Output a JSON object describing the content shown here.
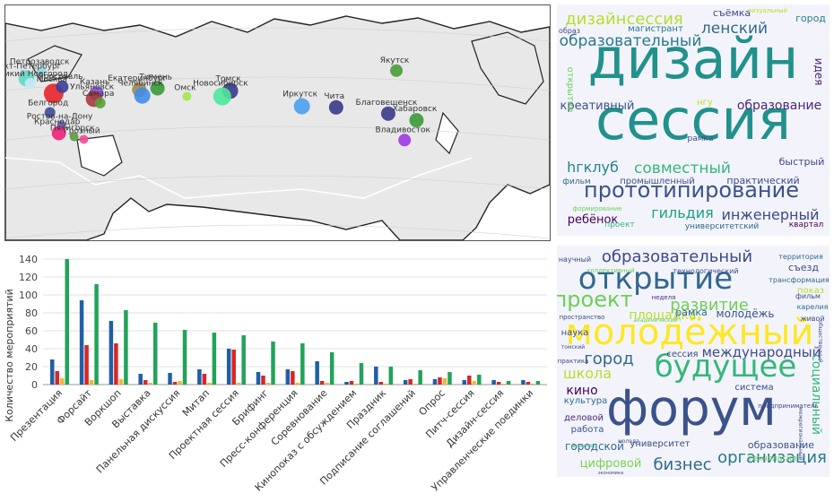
{
  "chart_data": [
    {
      "type": "scatter",
      "subtype": "geo-bubble-map",
      "region": "Russia",
      "points": [
        {
          "city": "Петрозаводск",
          "lon": 34.3,
          "lat": 61.8,
          "color": "#9fd9e8",
          "size": 6
        },
        {
          "city": "Санкт-Петербург",
          "lon": 30.3,
          "lat": 59.9,
          "color": "#62d7c7",
          "size": 9
        },
        {
          "city": "Великий Новгород",
          "lon": 31.3,
          "lat": 58.5,
          "color": "#c6e9f5",
          "size": 6
        },
        {
          "city": "Москва",
          "lon": 37.6,
          "lat": 55.8,
          "color": "#e8232b",
          "size": 11
        },
        {
          "city": "Ярославль",
          "lon": 39.9,
          "lat": 57.6,
          "color": "#3b3f99",
          "size": 7
        },
        {
          "city": "Казань",
          "lon": 49.1,
          "lat": 55.8,
          "color": "#8a4de0",
          "size": 8
        },
        {
          "city": "Ульяновск",
          "lon": 48.4,
          "lat": 54.3,
          "color": "#a83a3a",
          "size": 9
        },
        {
          "city": "Самара",
          "lon": 50.1,
          "lat": 53.2,
          "color": "#5a9e3a",
          "size": 6
        },
        {
          "city": "Белгород",
          "lon": 36.6,
          "lat": 50.6,
          "color": "#3f4a9a",
          "size": 6
        },
        {
          "city": "Ростов-на-Дону",
          "lon": 39.7,
          "lat": 47.2,
          "color": "#5967b8",
          "size": 5
        },
        {
          "city": "Екатеринбург",
          "lon": 60.6,
          "lat": 56.8,
          "color": "#9e8a4a",
          "size": 8
        },
        {
          "city": "Тюмень",
          "lon": 65.5,
          "lat": 57.2,
          "color": "#3a9a3a",
          "size": 8
        },
        {
          "city": "Челябинск",
          "lon": 61.4,
          "lat": 55.2,
          "color": "#3f8ee8",
          "size": 9
        },
        {
          "city": "Омск",
          "lon": 73.4,
          "lat": 55.0,
          "color": "#9ee84a",
          "size": 5
        },
        {
          "city": "Томск",
          "lon": 85.0,
          "lat": 56.5,
          "color": "#3a3a8a",
          "size": 9
        },
        {
          "city": "Новосибирск",
          "lon": 82.9,
          "lat": 55.0,
          "color": "#4ee89a",
          "size": 10
        },
        {
          "city": "Иркутск",
          "lon": 104.3,
          "lat": 52.3,
          "color": "#4a9ef0",
          "size": 9
        },
        {
          "city": "Чита",
          "lon": 113.5,
          "lat": 52.0,
          "color": "#3a3a8a",
          "size": 8
        },
        {
          "city": "Якутск",
          "lon": 129.7,
          "lat": 62.0,
          "color": "#4a9a3a",
          "size": 7
        },
        {
          "city": "Благовещенск",
          "lon": 127.5,
          "lat": 50.3,
          "color": "#3a3a8a",
          "size": 8
        },
        {
          "city": "Хабаровск",
          "lon": 135.1,
          "lat": 48.5,
          "color": "#3a9a3a",
          "size": 8
        },
        {
          "city": "Владивосток",
          "lon": 131.9,
          "lat": 43.1,
          "color": "#9a3ae8",
          "size": 7
        },
        {
          "city": "Пятигорск",
          "lon": 43.1,
          "lat": 44.0,
          "color": "#5a9e3a",
          "size": 5
        },
        {
          "city": "Грозный",
          "lon": 45.7,
          "lat": 43.3,
          "color": "#f04a9a",
          "size": 5
        },
        {
          "city": "Краснодар",
          "lon": 39.0,
          "lat": 45.0,
          "color": "#f0207a",
          "size": 8
        }
      ]
    },
    {
      "type": "bar",
      "categories": [
        "Презентация",
        "Форсайт",
        "Воркшоп",
        "Выставка",
        "Панельная дискуссия",
        "Митап",
        "Проектная сессия",
        "Брифинг",
        "Пресс-конференция",
        "Соревнование",
        "Кинопоказ с обсуждением",
        "Праздник",
        "Подписание соглашений",
        "Опрос",
        "Питч-сессия",
        "Дизайн-сессия",
        "Управленческие поединки"
      ],
      "series": [
        {
          "color": "#1f5fa8",
          "values": [
            28,
            94,
            71,
            12,
            13,
            17,
            40,
            14,
            17,
            26,
            3,
            20,
            5,
            6,
            5,
            5,
            5
          ]
        },
        {
          "color": "#d62728",
          "values": [
            15,
            44,
            46,
            5,
            3,
            12,
            39,
            10,
            15,
            4,
            4,
            3,
            6,
            8,
            10,
            3,
            3
          ]
        },
        {
          "color": "#f0b73a",
          "values": [
            7,
            5,
            6,
            2,
            4,
            2,
            2,
            2,
            2,
            2,
            1,
            1,
            1,
            7,
            4,
            1,
            1
          ]
        },
        {
          "color": "#21a35a",
          "values": [
            140,
            112,
            83,
            69,
            61,
            58,
            55,
            48,
            46,
            36,
            24,
            20,
            16,
            14,
            11,
            4,
            4
          ]
        }
      ],
      "ylabel": "Количество мероприятий",
      "ylim": [
        0,
        145
      ],
      "yticks": [
        0,
        20,
        40,
        60,
        80,
        100,
        120,
        140
      ],
      "grid": true
    },
    {
      "type": "wordcloud",
      "words": [
        {
          "text": "дизайн",
          "color": "#21918c"
        },
        {
          "text": "сессия",
          "color": "#21918c"
        },
        {
          "text": "прототипирование",
          "color": "#3b528b"
        },
        {
          "text": "дизайнсессия",
          "color": "#b5de2b"
        },
        {
          "text": "ленский",
          "color": "#31688e"
        },
        {
          "text": "образовательный",
          "color": "#2a788e"
        },
        {
          "text": "креативный",
          "color": "#3b528b"
        },
        {
          "text": "образование",
          "color": "#482878"
        },
        {
          "text": "hгклуб",
          "color": "#26828e"
        },
        {
          "text": "совместный",
          "color": "#35b779"
        },
        {
          "text": "инженерный",
          "color": "#3e4989"
        },
        {
          "text": "гильдия",
          "color": "#1f9e89"
        },
        {
          "text": "ребёнок",
          "color": "#440154"
        },
        {
          "text": "съёмка",
          "color": "#3e4989"
        },
        {
          "text": "магистрант",
          "color": "#2a788e"
        },
        {
          "text": "визуальный",
          "color": "#b5de2b"
        },
        {
          "text": "город",
          "color": "#2a788e"
        },
        {
          "text": "идея",
          "color": "#482878"
        },
        {
          "text": "открытие",
          "color": "#6ece58"
        },
        {
          "text": "нгу",
          "color": "#b5de2b"
        },
        {
          "text": "рамка",
          "color": "#3e4989"
        },
        {
          "text": "быстрый",
          "color": "#3e4989"
        },
        {
          "text": "фильм",
          "color": "#31688e"
        },
        {
          "text": "промышленный",
          "color": "#3b528b"
        },
        {
          "text": "практический",
          "color": "#3e4989"
        },
        {
          "text": "проект",
          "color": "#35b779"
        },
        {
          "text": "университетский",
          "color": "#31688e"
        },
        {
          "text": "квартал",
          "color": "#440154"
        },
        {
          "text": "образ",
          "color": "#3e4989"
        },
        {
          "text": "формирование",
          "color": "#6ece58"
        }
      ]
    },
    {
      "type": "wordcloud",
      "words": [
        {
          "text": "форум",
          "color": "#3b528b"
        },
        {
          "text": "молодёжный",
          "color": "#fde725"
        },
        {
          "text": "открытие",
          "color": "#31688e"
        },
        {
          "text": "будущее",
          "color": "#35b779"
        },
        {
          "text": "образовательный",
          "color": "#3e4989"
        },
        {
          "text": "проект",
          "color": "#6ece58"
        },
        {
          "text": "развитие",
          "color": "#6ece58"
        },
        {
          "text": "международный",
          "color": "#3e4989"
        },
        {
          "text": "город",
          "color": "#31688e"
        },
        {
          "text": "организация",
          "color": "#2a788e"
        },
        {
          "text": "бизнес",
          "color": "#31688e"
        },
        {
          "text": "школа",
          "color": "#b5de2b"
        },
        {
          "text": "кино",
          "color": "#440154"
        },
        {
          "text": "цифровой",
          "color": "#7ad151"
        },
        {
          "text": "площадка",
          "color": "#b5de2b"
        },
        {
          "text": "рамка",
          "color": "#31688e"
        },
        {
          "text": "молодёжь",
          "color": "#3b528b"
        },
        {
          "text": "социальный",
          "color": "#35b779"
        },
        {
          "text": "городской",
          "color": "#31688e"
        },
        {
          "text": "деловой",
          "color": "#482878"
        },
        {
          "text": "работа",
          "color": "#3b528b"
        },
        {
          "text": "культура",
          "color": "#31688e"
        },
        {
          "text": "наука",
          "color": "#3e4989"
        },
        {
          "text": "сессия",
          "color": "#3e4989"
        },
        {
          "text": "система",
          "color": "#3e4989"
        },
        {
          "text": "съезд",
          "color": "#3e4989"
        },
        {
          "text": "территория",
          "color": "#31688e"
        },
        {
          "text": "трансформация",
          "color": "#31688e"
        },
        {
          "text": "фильм",
          "color": "#3b528b"
        },
        {
          "text": "показ",
          "color": "#b5de2b"
        },
        {
          "text": "карелия",
          "color": "#31688e"
        },
        {
          "text": "живой",
          "color": "#3e4989"
        },
        {
          "text": "научный",
          "color": "#3e4989"
        },
        {
          "text": "технологический",
          "color": "#3e4989"
        },
        {
          "text": "коллективный",
          "color": "#6ece58"
        },
        {
          "text": "неделя",
          "color": "#482878"
        },
        {
          "text": "академический",
          "color": "#6ece58"
        },
        {
          "text": "пространство",
          "color": "#3e4989"
        },
        {
          "text": "томский",
          "color": "#3e4989"
        },
        {
          "text": "практика",
          "color": "#3e4989"
        },
        {
          "text": "волонтёр",
          "color": "#35b779"
        },
        {
          "text": "университет",
          "color": "#3e4989"
        },
        {
          "text": "молода",
          "color": "#3e4989"
        },
        {
          "text": "образование",
          "color": "#3b528b"
        },
        {
          "text": "технология",
          "color": "#6ece58"
        },
        {
          "text": "предприниматель",
          "color": "#3e4989"
        },
        {
          "text": "межрегиональный",
          "color": "#3e4989"
        },
        {
          "text": "общественный",
          "color": "#3e4989"
        },
        {
          "text": "экономика",
          "color": "#3e4989"
        }
      ]
    }
  ]
}
